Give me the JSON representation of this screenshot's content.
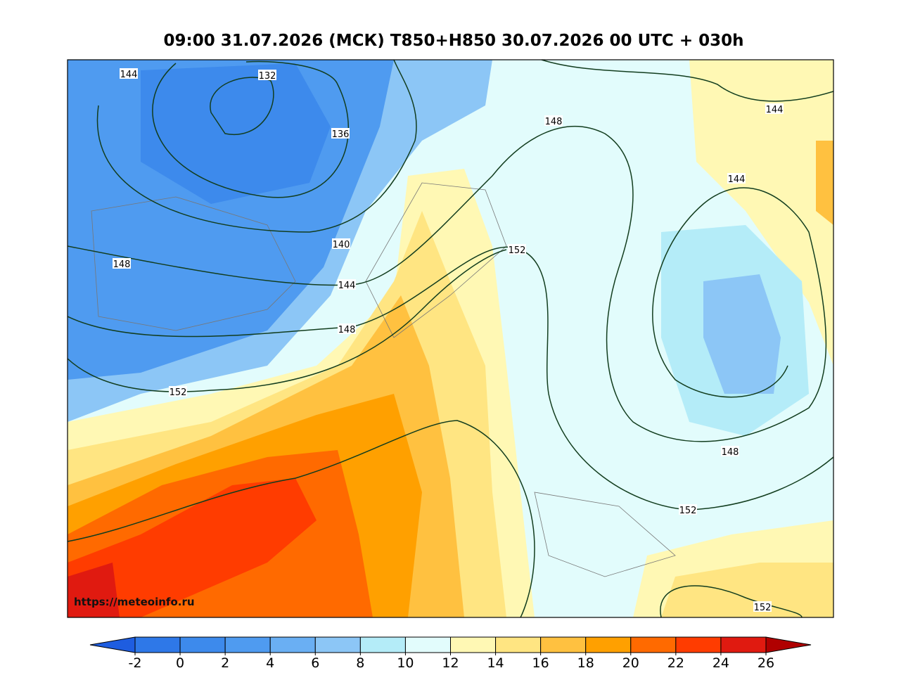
{
  "title": "09:00 31.07.2026 (МСК) T850+H850 30.07.2026 00 UTC + 030h",
  "watermark": "https://meteoinfo.ru",
  "contour_labels": [
    "144",
    "132",
    "136",
    "148",
    "144",
    "144",
    "140",
    "152",
    "148",
    "144",
    "148",
    "152",
    "148",
    "152",
    "152"
  ],
  "colorbar": {
    "ticks": [
      -2,
      0,
      2,
      4,
      6,
      8,
      10,
      12,
      14,
      16,
      18,
      20,
      22,
      24,
      26
    ],
    "colors": [
      "#1e5de0",
      "#2e78e8",
      "#3d8aec",
      "#4f9bf0",
      "#6aaff3",
      "#8cc6f6",
      "#b4ecf8",
      "#e2fcfc",
      "#fff8b4",
      "#ffe582",
      "#ffc140",
      "#ffa000",
      "#ff6a00",
      "#ff3c00",
      "#e01a10",
      "#b00000"
    ]
  }
}
